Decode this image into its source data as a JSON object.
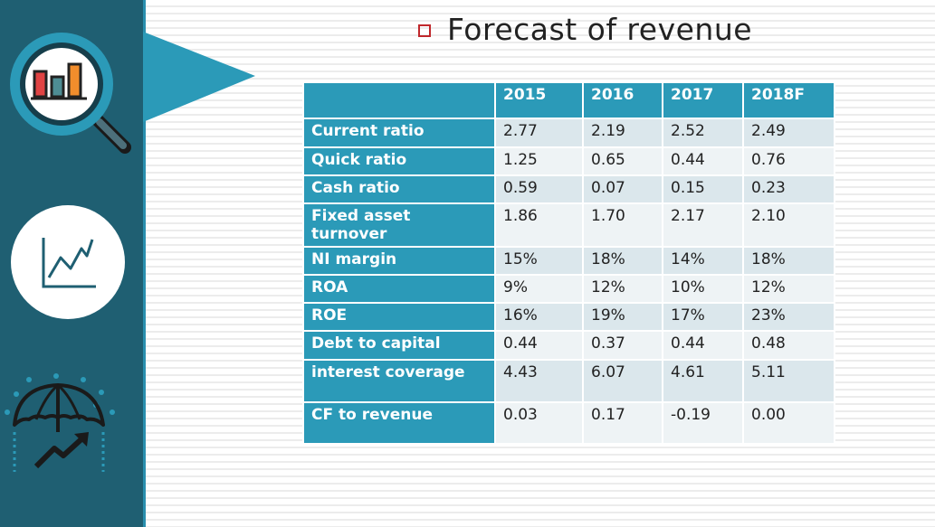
{
  "title": "Forecast of revenue",
  "table": {
    "header": [
      "",
      "2015",
      "2016",
      "2017",
      "2018F"
    ],
    "rows": [
      {
        "label": "Current ratio",
        "values": [
          "2.77",
          "2.19",
          "2.52",
          "2.49"
        ]
      },
      {
        "label": "Quick ratio",
        "values": [
          "1.25",
          "0.65",
          "0.44",
          "0.76"
        ]
      },
      {
        "label": "Cash ratio",
        "values": [
          "0.59",
          "0.07",
          "0.15",
          "0.23"
        ]
      },
      {
        "label": "Fixed asset turnover",
        "values": [
          "1.86",
          "1.70",
          "2.17",
          "2.10"
        ]
      },
      {
        "label": "NI margin",
        "values": [
          "15%",
          "18%",
          "14%",
          "18%"
        ]
      },
      {
        "label": "ROA",
        "values": [
          "9%",
          "12%",
          "10%",
          "12%"
        ]
      },
      {
        "label": "ROE",
        "values": [
          "16%",
          "19%",
          "17%",
          "23%"
        ]
      },
      {
        "label": "Debt to capital",
        "values": [
          "0.44",
          "0.37",
          "0.44",
          "0.48"
        ]
      },
      {
        "label": "interest coverage",
        "values": [
          "4.43",
          "6.07",
          "4.61",
          "5.11"
        ]
      },
      {
        "label": "CF to revenue",
        "values": [
          "0.03",
          "0.17",
          "-0.19",
          "0.00"
        ]
      }
    ]
  },
  "icons": [
    "magnifier-chart-icon",
    "line-chart-icon",
    "umbrella-growth-icon"
  ],
  "colors": {
    "sidebar": "#1f5f72",
    "accent": "#2b9ab8",
    "bullet": "#c0282c"
  }
}
